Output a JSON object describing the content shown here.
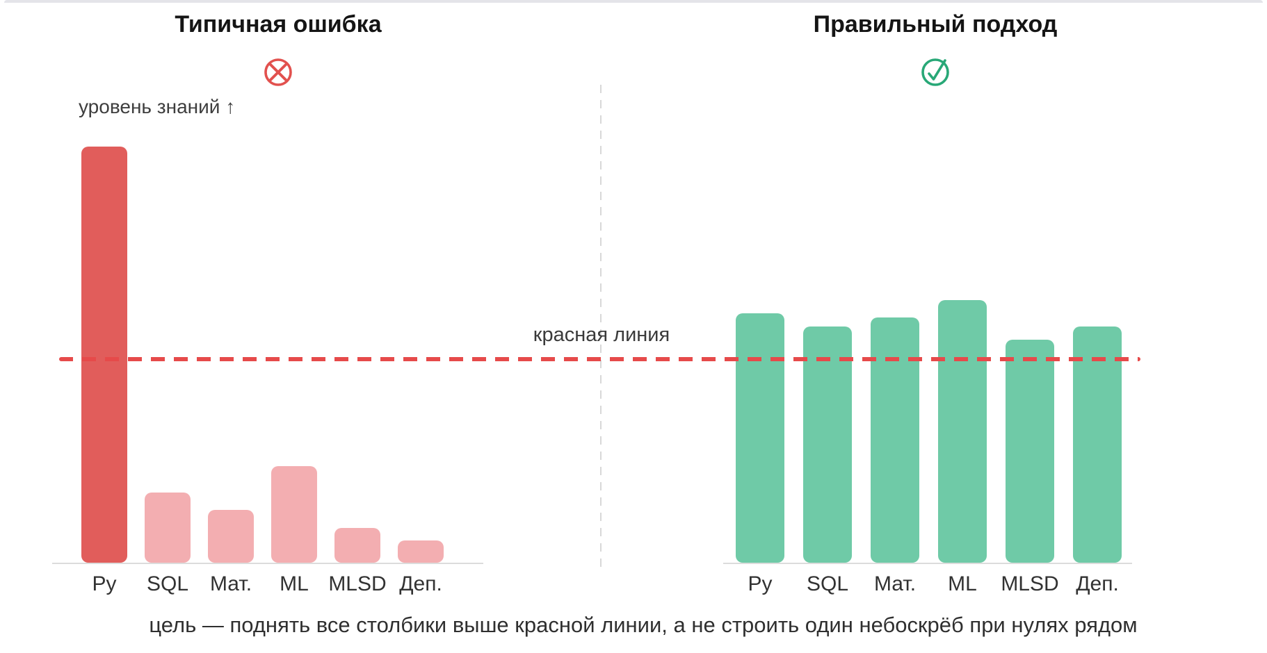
{
  "left_panel": {
    "title": "Типичная ошибка",
    "icon": "error-circle-x",
    "y_axis_label": "уровень знаний ↑"
  },
  "right_panel": {
    "title": "Правильный подход",
    "icon": "check-circle"
  },
  "ref_line": {
    "label": "красная линия",
    "value": 46.5,
    "color": "#e64a4a"
  },
  "caption": "цель — поднять все столбики выше красной линии, а не строить один небоскрёб при нулях рядом",
  "colors": {
    "error_accent": "#e2514e",
    "success_accent": "#28a877",
    "bar_pink": "#f3aeb1",
    "bar_dark_red": "#e15d5b",
    "bar_green": "#6fcaa7",
    "axis_gray": "#dcdcdc",
    "divider_gray": "#d8d8d8"
  },
  "chart_data": [
    {
      "type": "bar",
      "title": "Типичная ошибка",
      "categories": [
        "Py",
        "SQL",
        "Мат.",
        "ML",
        "MLSD",
        "Деп."
      ],
      "values": [
        95,
        16,
        12,
        22,
        8,
        5
      ],
      "highlight_index": 0,
      "highlight_color": "#e15d5b",
      "bar_color": "#f3aeb1",
      "xlabel": "",
      "ylabel": "уровень знаний ↑",
      "ylim": [
        0,
        100
      ],
      "grid": false,
      "ref_line_value": 46.5
    },
    {
      "type": "bar",
      "title": "Правильный подход",
      "categories": [
        "Py",
        "SQL",
        "Мат.",
        "ML",
        "MLSD",
        "Деп."
      ],
      "values": [
        57,
        54,
        56,
        60,
        51,
        54
      ],
      "highlight_index": -1,
      "highlight_color": "#6fcaa7",
      "bar_color": "#6fcaa7",
      "xlabel": "",
      "ylabel": "",
      "ylim": [
        0,
        100
      ],
      "grid": false,
      "ref_line_value": 46.5
    }
  ]
}
